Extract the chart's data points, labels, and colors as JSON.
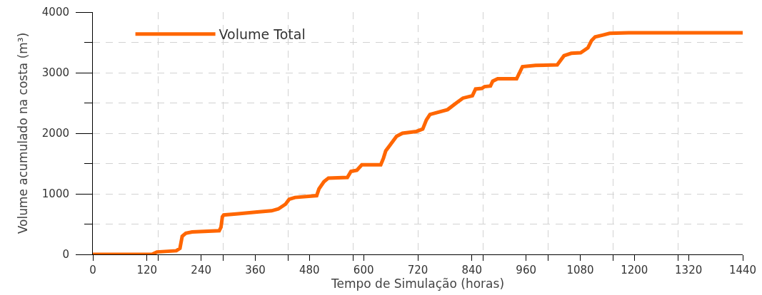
{
  "chart_data": {
    "type": "line",
    "xlabel": "Tempo de Simulação (horas)",
    "ylabel": "Volume acumulado na costa (m³)",
    "x": [
      0,
      131,
      142,
      185,
      193,
      198,
      206,
      220,
      280,
      284,
      287,
      290,
      322,
      364,
      396,
      411,
      427,
      435,
      448,
      496,
      501,
      512,
      522,
      564,
      572,
      585,
      596,
      638,
      644,
      649,
      659,
      673,
      686,
      717,
      731,
      739,
      747,
      786,
      807,
      820,
      841,
      848,
      862,
      868,
      881,
      886,
      897,
      939,
      952,
      981,
      1029,
      1044,
      1060,
      1081,
      1097,
      1105,
      1113,
      1129,
      1145,
      1187,
      1440
    ],
    "series": [
      {
        "name": "Volume Total",
        "color": "#ff6600",
        "values": [
          0,
          0,
          40,
          60,
          100,
          300,
          350,
          370,
          390,
          450,
          620,
          650,
          670,
          700,
          720,
          750,
          830,
          910,
          940,
          970,
          1080,
          1200,
          1260,
          1270,
          1370,
          1390,
          1480,
          1480,
          1590,
          1710,
          1810,
          1950,
          2000,
          2030,
          2070,
          2220,
          2310,
          2390,
          2510,
          2580,
          2620,
          2730,
          2740,
          2770,
          2780,
          2860,
          2900,
          2900,
          3100,
          3120,
          3130,
          3280,
          3320,
          3330,
          3410,
          3530,
          3590,
          3620,
          3650,
          3660,
          3660
        ]
      }
    ],
    "xlim": [
      0,
      1440
    ],
    "ylim": [
      0,
      4000
    ],
    "xticks": [
      0,
      120,
      240,
      360,
      480,
      600,
      720,
      840,
      960,
      1080,
      1200,
      1320,
      1440,
      {
        "value": 144,
        "label": null
      },
      {
        "value": 288,
        "label": null
      },
      {
        "value": 432,
        "label": null
      },
      {
        "value": 576,
        "label": null
      },
      {
        "value": 720,
        "label": null
      },
      {
        "value": 864,
        "label": null
      },
      {
        "value": 1008,
        "label": null
      },
      {
        "value": 1152,
        "label": null
      },
      {
        "value": 1296,
        "label": null
      },
      {
        "value": 1440,
        "label": null
      }
    ],
    "yticks": [
      0,
      1000,
      2000,
      3000,
      4000,
      {
        "value": 500,
        "label": null
      },
      {
        "value": 1500,
        "label": null
      },
      {
        "value": 2500,
        "label": null
      },
      {
        "value": 3500,
        "label": null
      }
    ],
    "grid": true,
    "legend": "top left",
    "line_style": "solid"
  }
}
